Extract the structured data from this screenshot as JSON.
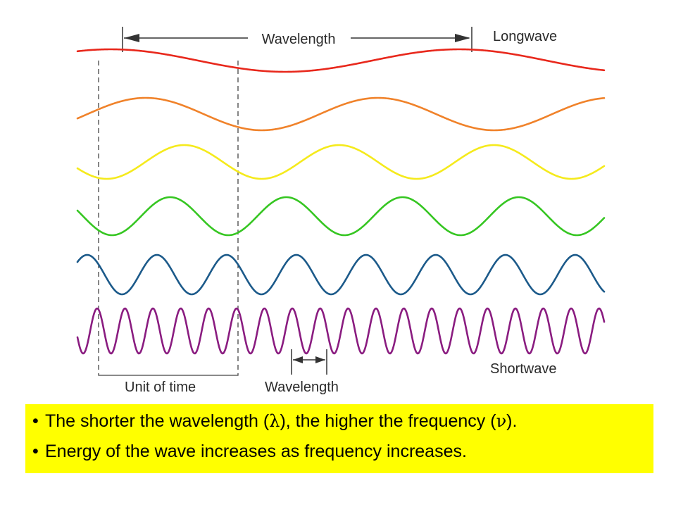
{
  "diagram": {
    "top_label": "Wavelength",
    "longwave_label": "Longwave",
    "shortwave_label": "Shortwave",
    "unit_label": "Unit of time",
    "bottom_label": "Wavelength",
    "waves": [
      {
        "name": "red-wave",
        "color": "#e8281c",
        "cycles_per_unit": 0.4
      },
      {
        "name": "orange-wave",
        "color": "#f0822a",
        "cycles_per_unit": 0.6
      },
      {
        "name": "yellow-wave",
        "color": "#f5ea1c",
        "cycles_per_unit": 0.9
      },
      {
        "name": "green-wave",
        "color": "#36c622",
        "cycles_per_unit": 1.2
      },
      {
        "name": "blue-wave",
        "color": "#1c5a8a",
        "cycles_per_unit": 2
      },
      {
        "name": "purple-wave",
        "color": "#8a1c80",
        "cycles_per_unit": 5
      }
    ]
  },
  "caption": {
    "bullet": "•",
    "line1_before": "The shorter the wavelength (",
    "line1_lambda": "λ",
    "line1_middle": "), the higher the frequency (",
    "line1_nu": "ν",
    "line1_after": ").",
    "line2": "Energy of the wave increases as frequency increases.",
    "background": "#ffff00"
  }
}
